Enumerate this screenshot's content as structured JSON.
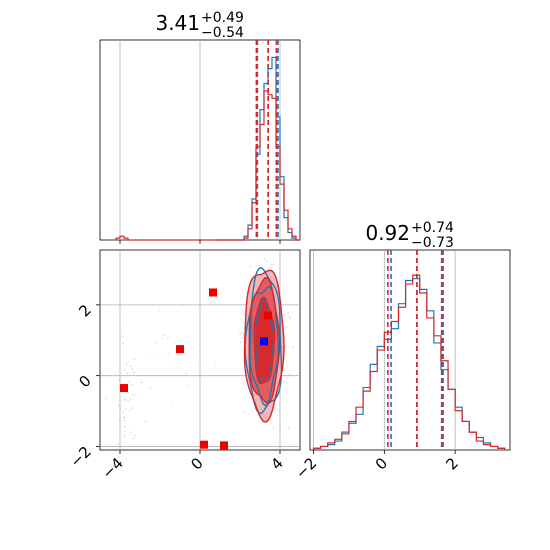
{
  "chart_data": {
    "type": "corner",
    "panels": [
      {
        "id": "marginal-x",
        "type": "histogram",
        "title": {
          "value": "3.41",
          "plus": "+0.49",
          "minus": "−0.54"
        },
        "xlim": [
          -5,
          5
        ],
        "grid": true,
        "series": [
          {
            "color": "#1f77b4",
            "bins": [
              0.8,
              1.0,
              1.2,
              1.4,
              1.6,
              1.8,
              2.0,
              2.2,
              2.4,
              2.6,
              2.8,
              3.0,
              3.2,
              3.4,
              3.6,
              3.8,
              4.0,
              4.2,
              4.4,
              4.6,
              4.8,
              5.0
            ],
            "counts": [
              0,
              0,
              0,
              0,
              0,
              0,
              0,
              0.02,
              0.08,
              0.22,
              0.46,
              0.7,
              0.84,
              0.92,
              0.98,
              0.66,
              0.34,
              0.12,
              0.04,
              0.01,
              0
            ],
            "quantiles": [
              2.87,
              3.41,
              3.9
            ]
          },
          {
            "color": "#d62728",
            "bins": [
              -4.2,
              -4.0,
              -3.8,
              -3.6,
              0.8,
              1.0,
              1.2,
              1.4,
              1.6,
              1.8,
              2.0,
              2.2,
              2.4,
              2.6,
              2.8,
              3.0,
              3.2,
              3.4,
              3.6,
              3.8,
              4.0,
              4.2,
              4.4,
              4.6,
              4.8,
              5.0
            ],
            "counts": [
              0.01,
              0.02,
              0.01,
              0,
              0,
              0,
              0,
              0,
              0,
              0,
              0,
              0.01,
              0.06,
              0.2,
              0.5,
              0.62,
              0.8,
              0.78,
              0.76,
              0.5,
              0.3,
              0.16,
              0.06,
              0.02,
              0
            ],
            "quantiles": [
              2.82,
              3.41,
              3.82
            ]
          }
        ]
      },
      {
        "id": "joint",
        "type": "contour-scatter",
        "xlim": [
          -5,
          5
        ],
        "ylim": [
          -2.1,
          3.55
        ],
        "grid": true,
        "xticks": [
          "−4",
          "0",
          "4"
        ],
        "yticks": [
          "−2",
          "0",
          "2"
        ],
        "xtick_values": [
          -4,
          0,
          4
        ],
        "ytick_values": [
          -2,
          0,
          2
        ],
        "contours": {
          "center": [
            3.2,
            0.95
          ],
          "blue_levels_sigma": [
            [
              0.45,
              1.12
            ],
            [
              0.7,
              1.6
            ],
            [
              0.88,
              1.98
            ]
          ],
          "red_levels_sigma": [
            [
              0.5,
              1.2
            ],
            [
              0.76,
              1.72
            ],
            [
              0.98,
              2.1
            ]
          ]
        },
        "red_markers": [
          [
            -3.8,
            -0.35
          ],
          [
            -1.0,
            0.75
          ],
          [
            0.65,
            2.35
          ],
          [
            0.2,
            -1.95
          ],
          [
            1.2,
            -1.97
          ],
          [
            3.4,
            1.7
          ]
        ],
        "blue_markers": [
          [
            3.2,
            0.97
          ]
        ]
      },
      {
        "id": "marginal-y",
        "type": "histogram",
        "title": {
          "value": "0.92",
          "plus": "+0.74",
          "minus": "−0.73"
        },
        "xlim": [
          -2.1,
          3.55
        ],
        "grid": true,
        "xticks": [
          "−2",
          "0",
          "2"
        ],
        "xtick_values": [
          -2,
          0,
          2
        ],
        "series": [
          {
            "color": "#1f77b4",
            "bins": [
              -2.0,
              -1.8,
              -1.6,
              -1.4,
              -1.2,
              -1.0,
              -0.8,
              -0.6,
              -0.4,
              -0.2,
              0.0,
              0.2,
              0.4,
              0.6,
              0.8,
              1.0,
              1.2,
              1.4,
              1.6,
              1.8,
              2.0,
              2.2,
              2.4,
              2.6,
              2.8,
              3.0,
              3.2,
              3.4
            ],
            "counts": [
              0.01,
              0.02,
              0.03,
              0.05,
              0.1,
              0.15,
              0.2,
              0.35,
              0.48,
              0.58,
              0.62,
              0.68,
              0.82,
              0.95,
              0.96,
              0.9,
              0.78,
              0.6,
              0.45,
              0.34,
              0.24,
              0.16,
              0.1,
              0.07,
              0.04,
              0.02,
              0.01
            ],
            "quantiles": [
              0.19,
              0.92,
              1.66
            ]
          },
          {
            "color": "#d62728",
            "bins": [
              -2.0,
              -1.8,
              -1.6,
              -1.4,
              -1.2,
              -1.0,
              -0.8,
              -0.6,
              -0.4,
              -0.2,
              0.0,
              0.2,
              0.4,
              0.6,
              0.8,
              1.0,
              1.2,
              1.4,
              1.6,
              1.8,
              2.0,
              2.2,
              2.4,
              2.6,
              2.8,
              3.0,
              3.2,
              3.4
            ],
            "counts": [
              0.01,
              0.02,
              0.04,
              0.06,
              0.09,
              0.16,
              0.24,
              0.33,
              0.44,
              0.56,
              0.66,
              0.72,
              0.8,
              0.93,
              0.98,
              0.88,
              0.74,
              0.64,
              0.5,
              0.34,
              0.22,
              0.16,
              0.1,
              0.05,
              0.03,
              0.02,
              0.01
            ],
            "quantiles": [
              0.1,
              0.92,
              1.62
            ]
          }
        ]
      }
    ]
  }
}
